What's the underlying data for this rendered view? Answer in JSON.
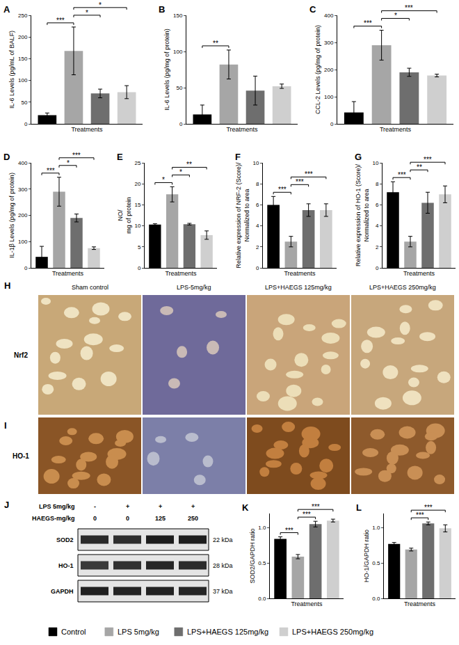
{
  "chart_data": [
    {
      "type": "bar",
      "title": "A",
      "ylabel": "IL-6 Levels (pg/mL of BALF)",
      "xlabel": "Treatments",
      "categories": [
        null,
        null,
        null,
        null
      ],
      "values": [
        20,
        168,
        70,
        73
      ],
      "errors": [
        5,
        55,
        10,
        15
      ],
      "colors": [
        "#000000",
        "#a6a6a6",
        "#6e6e6e",
        "#cfcfcf"
      ],
      "ylim": [
        0,
        250
      ],
      "yticks": [
        0,
        50,
        100,
        150,
        200,
        250
      ],
      "tick_labels": "y",
      "grid": false,
      "significance": [
        {
          "groups": [
            0,
            1
          ],
          "label": "***"
        },
        {
          "groups": [
            1,
            2
          ],
          "label": "*"
        },
        {
          "groups": [
            1,
            3
          ],
          "label": "*"
        }
      ]
    },
    {
      "type": "bar",
      "title": "B",
      "ylabel": "IL-6 Levels (pg/mg of protein)",
      "xlabel": "Treatments",
      "categories": [
        null,
        null,
        null,
        null
      ],
      "values": [
        13,
        82,
        46,
        52
      ],
      "errors": [
        13,
        20,
        20,
        3
      ],
      "colors": [
        "#000000",
        "#a6a6a6",
        "#6e6e6e",
        "#cfcfcf"
      ],
      "ylim": [
        0,
        150
      ],
      "yticks": [
        0,
        50,
        100,
        150
      ],
      "tick_labels": "y",
      "grid": false,
      "significance": [
        {
          "groups": [
            0,
            1
          ],
          "label": "**"
        }
      ]
    },
    {
      "type": "bar",
      "title": "C",
      "ylabel": "CCL-2 Levels (pg/mg of protein)",
      "xlabel": "Treatments",
      "categories": [
        null,
        null,
        null,
        null
      ],
      "values": [
        42,
        290,
        190,
        178
      ],
      "errors": [
        40,
        55,
        15,
        5
      ],
      "colors": [
        "#000000",
        "#a6a6a6",
        "#6e6e6e",
        "#cfcfcf"
      ],
      "ylim": [
        0,
        400
      ],
      "yticks": [
        0,
        100,
        200,
        300,
        400
      ],
      "tick_labels": "y",
      "grid": false,
      "significance": [
        {
          "groups": [
            0,
            1
          ],
          "label": "***"
        },
        {
          "groups": [
            1,
            2
          ],
          "label": "*"
        },
        {
          "groups": [
            1,
            3
          ],
          "label": "***"
        }
      ]
    },
    {
      "type": "bar",
      "title": "D",
      "ylabel": "IL-1β Levels (pg/mg of protein)",
      "xlabel": "Treatments",
      "categories": [
        null,
        null,
        null,
        null
      ],
      "values": [
        42,
        290,
        190,
        75
      ],
      "errors": [
        40,
        55,
        15,
        5
      ],
      "colors": [
        "#000000",
        "#a6a6a6",
        "#6e6e6e",
        "#cfcfcf"
      ],
      "ylim": [
        0,
        400
      ],
      "yticks": [
        0,
        100,
        200,
        300,
        400
      ],
      "tick_labels": "y",
      "grid": false,
      "significance": [
        {
          "groups": [
            0,
            1
          ],
          "label": "***"
        },
        {
          "groups": [
            1,
            2
          ],
          "label": "*"
        },
        {
          "groups": [
            1,
            3
          ],
          "label": "***"
        }
      ]
    },
    {
      "type": "bar",
      "title": "E",
      "ylabel": "NO/ mg of protein",
      "xlabel": "Treatments",
      "categories": [
        null,
        null,
        null,
        null
      ],
      "values": [
        10.3,
        17.5,
        10.4,
        7.8
      ],
      "errors": [
        0.2,
        1.8,
        0.2,
        1
      ],
      "colors": [
        "#000000",
        "#a6a6a6",
        "#6e6e6e",
        "#cfcfcf"
      ],
      "ylim": [
        0,
        25
      ],
      "yticks": [
        0,
        5,
        10,
        15,
        20,
        25
      ],
      "tick_labels": "y",
      "grid": false,
      "significance": [
        {
          "groups": [
            0,
            1
          ],
          "label": "*"
        },
        {
          "groups": [
            1,
            2
          ],
          "label": "*"
        },
        {
          "groups": [
            1,
            3
          ],
          "label": "**"
        }
      ]
    },
    {
      "type": "bar",
      "title": "F",
      "ylabel": "Relative expression of NRF-2 (Score)/ Normalized to area",
      "xlabel": "Treatments",
      "categories": [
        null,
        null,
        null,
        null
      ],
      "values": [
        6.0,
        2.5,
        5.5,
        5.5
      ],
      "errors": [
        0.8,
        0.5,
        0.6,
        0.6
      ],
      "colors": [
        "#000000",
        "#a6a6a6",
        "#6e6e6e",
        "#cfcfcf"
      ],
      "ylim": [
        0,
        10
      ],
      "yticks": [
        0,
        2,
        4,
        6,
        8,
        10
      ],
      "tick_labels": "y",
      "grid": false,
      "significance": [
        {
          "groups": [
            0,
            1
          ],
          "label": "***"
        },
        {
          "groups": [
            1,
            2
          ],
          "label": "***"
        },
        {
          "groups": [
            1,
            3
          ],
          "label": "***"
        }
      ]
    },
    {
      "type": "bar",
      "title": "G",
      "ylabel": "Relative expression of HO-1 (Score)/ Normalized to area",
      "xlabel": "Treatments",
      "categories": [
        null,
        null,
        null,
        null
      ],
      "values": [
        7.2,
        2.5,
        6.2,
        7.0
      ],
      "errors": [
        1.0,
        0.5,
        1.0,
        0.8
      ],
      "colors": [
        "#000000",
        "#a6a6a6",
        "#6e6e6e",
        "#cfcfcf"
      ],
      "ylim": [
        0,
        10
      ],
      "yticks": [
        0,
        2,
        4,
        6,
        8,
        10
      ],
      "tick_labels": "y",
      "grid": false,
      "significance": [
        {
          "groups": [
            0,
            1
          ],
          "label": "***"
        },
        {
          "groups": [
            1,
            2
          ],
          "label": "**"
        },
        {
          "groups": [
            1,
            3
          ],
          "label": "***"
        }
      ]
    },
    {
      "type": "bar",
      "title": "K",
      "ylabel": "SOD2/GAPDH ratio",
      "xlabel": "Treatments",
      "categories": [
        null,
        null,
        null,
        null
      ],
      "values": [
        0.84,
        0.59,
        1.05,
        1.1
      ],
      "errors": [
        0.03,
        0.03,
        0.04,
        0.02
      ],
      "colors": [
        "#000000",
        "#a6a6a6",
        "#6e6e6e",
        "#cfcfcf"
      ],
      "ylim": [
        0,
        1.2
      ],
      "yticks": [
        {
          "value": 0,
          "label": "0.0"
        },
        {
          "value": 0.5,
          "label": "0.5"
        },
        {
          "value": 1,
          "label": "1.0"
        }
      ],
      "tick_labels": "y",
      "grid": false,
      "significance": [
        {
          "groups": [
            0,
            1
          ],
          "label": "***"
        },
        {
          "groups": [
            1,
            2
          ],
          "label": "***"
        },
        {
          "groups": [
            1,
            3
          ],
          "label": "***"
        }
      ]
    },
    {
      "type": "bar",
      "title": "L",
      "ylabel": "HO-1/GAPDH ratio",
      "xlabel": "Treatments",
      "categories": [
        null,
        null,
        null,
        null
      ],
      "values": [
        0.77,
        0.69,
        1.06,
        0.99
      ],
      "errors": [
        0.02,
        0.02,
        0.02,
        0.05
      ],
      "colors": [
        "#000000",
        "#a6a6a6",
        "#6e6e6e",
        "#cfcfcf"
      ],
      "ylim": [
        0,
        1.2
      ],
      "yticks": [
        {
          "value": 0,
          "label": "0.0"
        },
        {
          "value": 0.5,
          "label": "0.5"
        },
        {
          "value": 1,
          "label": "1.0"
        }
      ],
      "tick_labels": "y",
      "grid": false,
      "significance": [
        {
          "groups": [
            1,
            2
          ],
          "label": "***"
        },
        {
          "groups": [
            1,
            3
          ],
          "label": "***"
        }
      ]
    }
  ],
  "legend_items": [
    {
      "name": "Control",
      "color": "#000000"
    },
    {
      "name": "LPS 5mg/kg",
      "color": "#a6a6a6"
    },
    {
      "name": "LPS+HAEGS 125mg/kg",
      "color": "#6e6e6e"
    },
    {
      "name": "LPS+HAEGS 250mg/kg",
      "color": "#cfcfcf"
    }
  ],
  "micrographs": {
    "columns": [
      "Sham control",
      "LPS-5mg/kg",
      "LPS+HAEGS 125mg/kg",
      "LPS+HAEGS 250mg/kg"
    ],
    "rows": [
      {
        "panel": "H",
        "stain": "Nrf2"
      },
      {
        "panel": "I",
        "stain": "HO-1"
      }
    ]
  },
  "western_blot": {
    "panel": "J",
    "treatments": [
      {
        "label": "LPS 5mg/kg",
        "lanes": [
          "-",
          "+",
          "+",
          "+"
        ]
      },
      {
        "label": "HAEGS-mg/kg",
        "lanes": [
          "0",
          "0",
          "125",
          "250"
        ]
      }
    ],
    "bands": [
      {
        "protein": "SOD2",
        "size": "22 kDa"
      },
      {
        "protein": "HO-1",
        "size": "28 kDa"
      },
      {
        "protein": "GAPDH",
        "size": "37 kDa"
      }
    ]
  }
}
